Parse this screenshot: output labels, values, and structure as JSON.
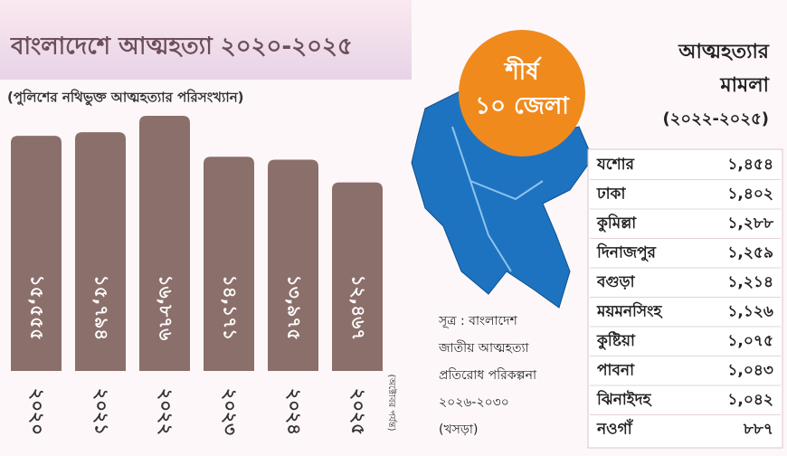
{
  "chart_data": {
    "type": "bar",
    "title": "বাংলাদেশে আত্মহত্যা ২০২০-২০২৫",
    "subtitle": "(পুলিশের নথিভুক্ত আত্মহত্যার পরিসংখ্যান)",
    "categories": [
      "২০২০",
      "২০২১",
      "২০২২",
      "২০২৩",
      "২০২৪",
      "২০২৫"
    ],
    "category_notes": [
      null,
      null,
      null,
      null,
      null,
      "(অক্টোবর পর্যন্ত)"
    ],
    "values": [
      15555,
      15794,
      16876,
      14171,
      13975,
      12467
    ],
    "value_labels": [
      "১৫,৫৫৫",
      "১৫,৭৯৪",
      "১৬,৮৭৬",
      "১৪,১৭১",
      "১৩,৯৭৫",
      "১২,৪৬৭"
    ],
    "color": "#8b6f6b"
  },
  "badge": [
    "শীর্ষ",
    "১০ জেলা"
  ],
  "source": [
    "সূত্র : বাংলাদেশ",
    "জাতীয় আত্মহত্যা",
    "প্রতিরোধ পরিকল্পনা",
    "২০২৬-২০৩০",
    "(খসড়া)"
  ],
  "table": {
    "title": [
      "আত্মহত্যার",
      "মামলা",
      "(২০২২-২০২৫)"
    ],
    "rows": [
      [
        "যশোর",
        "১,৪৫৪"
      ],
      [
        "ঢাকা",
        "১,৪০২"
      ],
      [
        "কুমিল্লা",
        "১,২৮৮"
      ],
      [
        "দিনাজপুর",
        "১,২৫৯"
      ],
      [
        "বগুড়া",
        "১,২১৪"
      ],
      [
        "ময়মনসিংহ",
        "১,১২৬"
      ],
      [
        "কুষ্টিয়া",
        "১,০৭৫"
      ],
      [
        "পাবনা",
        "১,০৪৩"
      ],
      [
        "ঝিনাইদহ",
        "১,০৪২"
      ],
      [
        "নওগাঁ",
        "৮৮৭"
      ]
    ]
  }
}
